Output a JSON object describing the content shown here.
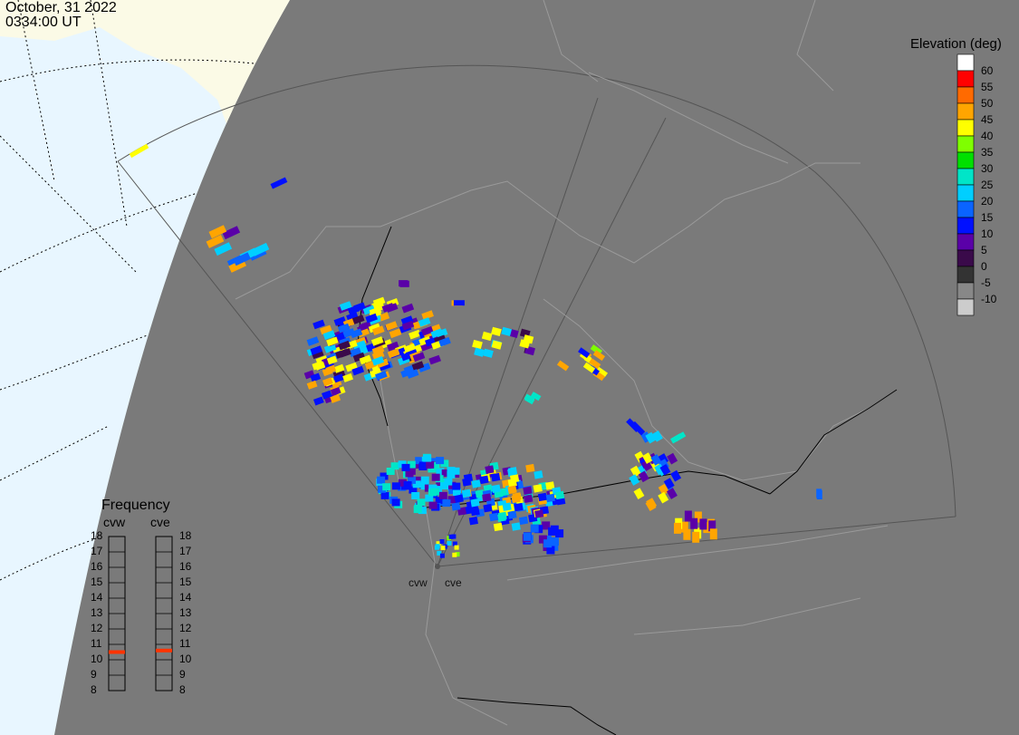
{
  "header": {
    "date": "October, 31 2022",
    "time": "0334:00 UT"
  },
  "elevation_legend": {
    "title": "Elevation (deg)",
    "levels": [
      {
        "label": "60",
        "color": "#ffffff"
      },
      {
        "label": "55",
        "color": "#ff0000"
      },
      {
        "label": "50",
        "color": "#ff6a00"
      },
      {
        "label": "45",
        "color": "#ffa500"
      },
      {
        "label": "40",
        "color": "#ffff00"
      },
      {
        "label": "35",
        "color": "#7fff00"
      },
      {
        "label": "30",
        "color": "#00e000"
      },
      {
        "label": "25",
        "color": "#00e5c8"
      },
      {
        "label": "20",
        "color": "#00cfff"
      },
      {
        "label": "15",
        "color": "#0a64ff"
      },
      {
        "label": "10",
        "color": "#0010ff"
      },
      {
        "label": "5",
        "color": "#5a00a8"
      },
      {
        "label": "0",
        "color": "#3a0a4a"
      },
      {
        "label": "-5",
        "color": "#333333"
      },
      {
        "label": "-10",
        "color": "#888888"
      },
      {
        "label": "",
        "color": "#cccccc"
      }
    ]
  },
  "frequency_panel": {
    "title": "Frequency",
    "radars": [
      {
        "name": "cvw",
        "current_mhz": 10.5
      },
      {
        "name": "cve",
        "current_mhz": 10.6
      }
    ],
    "scale": [
      "18",
      "17",
      "16",
      "15",
      "14",
      "13",
      "12",
      "11",
      "10",
      "9",
      "8"
    ],
    "indicator_color": "#ff3300"
  },
  "radar_sites": [
    {
      "name": "cvw"
    },
    {
      "name": "cve"
    }
  ],
  "colors": {
    "night": "#7a7a7a",
    "ocean": "#e8f6ff",
    "land_day": "#fbfae6",
    "borders": "#999999"
  }
}
